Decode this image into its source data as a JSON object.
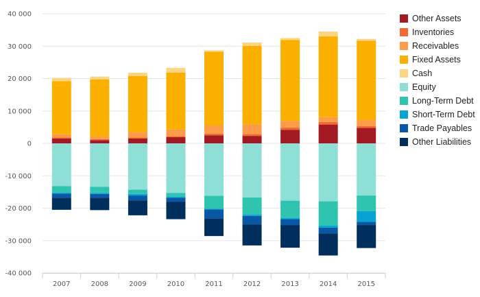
{
  "chart_data": {
    "type": "bar",
    "stacked": true,
    "categories": [
      "2007",
      "2008",
      "2009",
      "2010",
      "2011",
      "2012",
      "2013",
      "2014",
      "2015"
    ],
    "ylim": [
      -40000,
      40000
    ],
    "yticks": [
      {
        "value": 40000,
        "label": "40 000"
      },
      {
        "value": 30000,
        "label": "30 000"
      },
      {
        "value": 20000,
        "label": "20 000"
      },
      {
        "value": 10000,
        "label": "10 000"
      },
      {
        "value": 0,
        "label": "0"
      },
      {
        "value": -10000,
        "label": "-10 000"
      },
      {
        "value": -20000,
        "label": "-20 000"
      },
      {
        "value": -30000,
        "label": "-30 000"
      },
      {
        "value": -40000,
        "label": "-40 000"
      }
    ],
    "grid": true,
    "legend_position": "right",
    "series": [
      {
        "name": "Other Assets",
        "color": "#a31a22",
        "values": [
          1500,
          1000,
          1500,
          1900,
          2500,
          2300,
          4200,
          5800,
          4800
        ]
      },
      {
        "name": "Inventories",
        "color": "#f46a2e",
        "values": [
          300,
          300,
          300,
          300,
          500,
          600,
          700,
          800,
          500
        ]
      },
      {
        "name": "Receivables",
        "color": "#fc9b4a",
        "values": [
          1000,
          800,
          1700,
          2100,
          2500,
          3000,
          2000,
          1500,
          1900
        ]
      },
      {
        "name": "Fixed Assets",
        "color": "#fbb000",
        "values": [
          16400,
          17600,
          17300,
          17500,
          22800,
          24200,
          25000,
          24900,
          24500
        ]
      },
      {
        "name": "Cash",
        "color": "#fdd484",
        "values": [
          1000,
          900,
          1000,
          1500,
          400,
          1000,
          600,
          1500,
          500
        ]
      },
      {
        "name": "Equity",
        "color": "#8edfd6",
        "values": [
          -13200,
          -13400,
          -14300,
          -15300,
          -16200,
          -16700,
          -17700,
          -17900,
          -16100
        ]
      },
      {
        "name": "Long-Term Debt",
        "color": "#2ec4b0",
        "values": [
          -2000,
          -1900,
          -1300,
          -1200,
          -4000,
          -5300,
          -5300,
          -7500,
          -4800
        ]
      },
      {
        "name": "Short-Term Debt",
        "color": "#06a4d3",
        "values": [
          -300,
          -300,
          -500,
          -300,
          -200,
          -400,
          -400,
          -600,
          -3300
        ]
      },
      {
        "name": "Trade Payables",
        "color": "#0958a8",
        "values": [
          -1300,
          -1200,
          -1500,
          -1200,
          -2800,
          -2600,
          -1800,
          -1800,
          -1000
        ]
      },
      {
        "name": "Other Liabilities",
        "color": "#012f5d",
        "values": [
          -3700,
          -3800,
          -4600,
          -5400,
          -5400,
          -6500,
          -7000,
          -6800,
          -7100
        ]
      }
    ]
  }
}
